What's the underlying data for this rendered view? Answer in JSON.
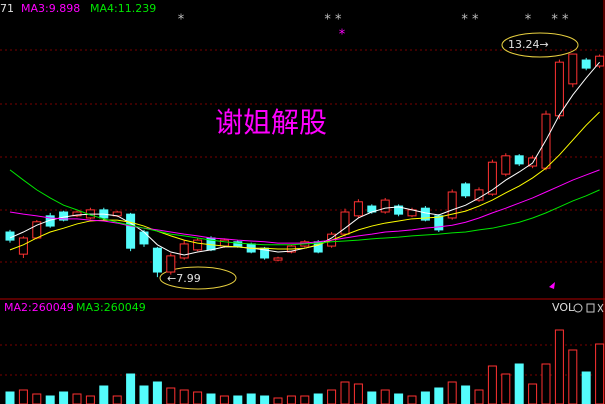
{
  "chart_data": {
    "type": "candlestick",
    "title": "谢姐解股",
    "header_labels": [
      "71",
      "MA3:9.898",
      "MA4:11.239"
    ],
    "volume_labels": [
      "MA2:260049",
      "MA3:260049"
    ],
    "volume_title": "VOL",
    "star_marks": [
      "*",
      "* *",
      "* *",
      "*",
      "* *",
      "*"
    ],
    "annotations": [
      "←7.99",
      "13.24→"
    ],
    "up_color": "#ff3232",
    "down_color": "#54fcfc",
    "ylim": [
      7.5,
      14.5
    ],
    "vol_ylim": [
      0,
      450000
    ],
    "open": [
      9.05,
      8.53,
      8.91,
      9.43,
      9.52,
      9.43,
      9.38,
      9.57,
      9.43,
      9.47,
      9.05,
      8.67,
      8.11,
      8.44,
      8.63,
      8.91,
      8.72,
      8.82,
      8.77,
      8.67,
      8.39,
      8.58,
      8.72,
      8.82,
      8.72,
      9.0,
      9.43,
      9.66,
      9.52,
      9.66,
      9.43,
      9.61,
      9.43,
      9.38,
      10.18,
      9.8,
      9.94,
      10.41,
      10.84,
      10.6,
      10.55,
      11.78,
      12.53,
      13.09,
      12.95
    ],
    "high": [
      9.1,
      8.95,
      9.33,
      9.5,
      9.55,
      9.55,
      9.62,
      9.62,
      9.55,
      9.5,
      9.1,
      8.7,
      8.55,
      8.85,
      8.9,
      8.95,
      8.9,
      8.86,
      8.8,
      8.7,
      8.47,
      8.75,
      8.86,
      8.86,
      9.05,
      9.6,
      9.82,
      9.7,
      9.85,
      9.7,
      9.62,
      9.66,
      9.47,
      10.05,
      10.22,
      10.1,
      10.75,
      10.9,
      10.88,
      10.85,
      11.9,
      13.1,
      13.24,
      13.14,
      13.22
    ],
    "low": [
      8.8,
      8.44,
      8.88,
      9.15,
      9.3,
      9.4,
      9.35,
      9.33,
      9.4,
      8.6,
      8.7,
      7.99,
      8.05,
      8.4,
      8.6,
      8.6,
      8.68,
      8.68,
      8.55,
      8.4,
      8.36,
      8.55,
      8.69,
      8.55,
      8.68,
      8.95,
      9.38,
      9.48,
      9.48,
      9.42,
      9.4,
      9.3,
      9.05,
      9.34,
      9.85,
      9.76,
      9.9,
      10.36,
      10.6,
      10.55,
      10.5,
      11.7,
      12.45,
      12.85,
      12.9
    ],
    "close": [
      8.86,
      8.91,
      9.29,
      9.19,
      9.33,
      9.52,
      9.57,
      9.38,
      9.52,
      8.67,
      8.77,
      8.11,
      8.49,
      8.77,
      8.86,
      8.63,
      8.86,
      8.72,
      8.58,
      8.44,
      8.44,
      8.72,
      8.82,
      8.58,
      9.0,
      9.52,
      9.76,
      9.52,
      9.8,
      9.47,
      9.57,
      9.33,
      9.1,
      9.99,
      9.9,
      10.04,
      10.69,
      10.84,
      10.65,
      10.79,
      11.82,
      13.04,
      13.23,
      12.9,
      13.18
    ],
    "volume": [
      60000,
      70000,
      50000,
      40000,
      60000,
      50000,
      40000,
      90000,
      40000,
      150000,
      90000,
      110000,
      80000,
      70000,
      60000,
      50000,
      40000,
      40000,
      50000,
      40000,
      30000,
      40000,
      40000,
      50000,
      70000,
      110000,
      100000,
      60000,
      70000,
      50000,
      40000,
      60000,
      80000,
      110000,
      90000,
      70000,
      190000,
      150000,
      200000,
      100000,
      200000,
      370000,
      270000,
      160000,
      300000
    ],
    "ma_series": [
      {
        "color": "#ffffff",
        "values": [
          8.91,
          9.05,
          9.21,
          9.33,
          9.4,
          9.45,
          9.47,
          9.47,
          9.43,
          9.26,
          9.05,
          8.75,
          8.58,
          8.51,
          8.58,
          8.63,
          8.7,
          8.7,
          8.67,
          8.63,
          8.58,
          8.6,
          8.67,
          8.74,
          8.91,
          9.14,
          9.38,
          9.52,
          9.61,
          9.64,
          9.57,
          9.5,
          9.45,
          9.57,
          9.68,
          9.85,
          10.04,
          10.27,
          10.46,
          10.67,
          11.21,
          11.8,
          12.27,
          12.67,
          13.04
        ]
      },
      {
        "color": "#ffff00",
        "values": [
          8.63,
          8.75,
          8.91,
          9.05,
          9.14,
          9.24,
          9.31,
          9.33,
          9.33,
          9.28,
          9.19,
          9.07,
          8.96,
          8.86,
          8.79,
          8.75,
          8.72,
          8.7,
          8.67,
          8.67,
          8.65,
          8.65,
          8.67,
          8.75,
          8.86,
          8.98,
          9.1,
          9.19,
          9.26,
          9.31,
          9.36,
          9.38,
          9.4,
          9.47,
          9.54,
          9.66,
          9.8,
          9.97,
          10.13,
          10.32,
          10.55,
          10.86,
          11.21,
          11.56,
          11.87
        ]
      },
      {
        "color": "#ff00ff",
        "values": [
          9.52,
          9.47,
          9.43,
          9.38,
          9.36,
          9.36,
          9.33,
          9.31,
          9.26,
          9.19,
          9.14,
          9.1,
          9.05,
          9.0,
          8.96,
          8.91,
          8.89,
          8.86,
          8.84,
          8.82,
          8.79,
          8.79,
          8.79,
          8.82,
          8.86,
          8.91,
          8.96,
          9.0,
          9.05,
          9.07,
          9.1,
          9.14,
          9.17,
          9.21,
          9.28,
          9.38,
          9.5,
          9.61,
          9.73,
          9.85,
          9.99,
          10.13,
          10.27,
          10.39,
          10.51
        ]
      },
      {
        "color": "#00e600",
        "values": [
          10.51,
          10.27,
          10.04,
          9.85,
          9.68,
          9.57,
          9.45,
          9.36,
          9.28,
          9.21,
          9.14,
          9.07,
          9.0,
          8.96,
          8.91,
          8.86,
          8.82,
          8.79,
          8.77,
          8.75,
          8.75,
          8.75,
          8.77,
          8.79,
          8.82,
          8.84,
          8.86,
          8.89,
          8.91,
          8.93,
          8.96,
          8.98,
          9.0,
          9.03,
          9.05,
          9.1,
          9.14,
          9.21,
          9.28,
          9.38,
          9.5,
          9.64,
          9.78,
          9.9,
          10.04
        ]
      }
    ]
  }
}
